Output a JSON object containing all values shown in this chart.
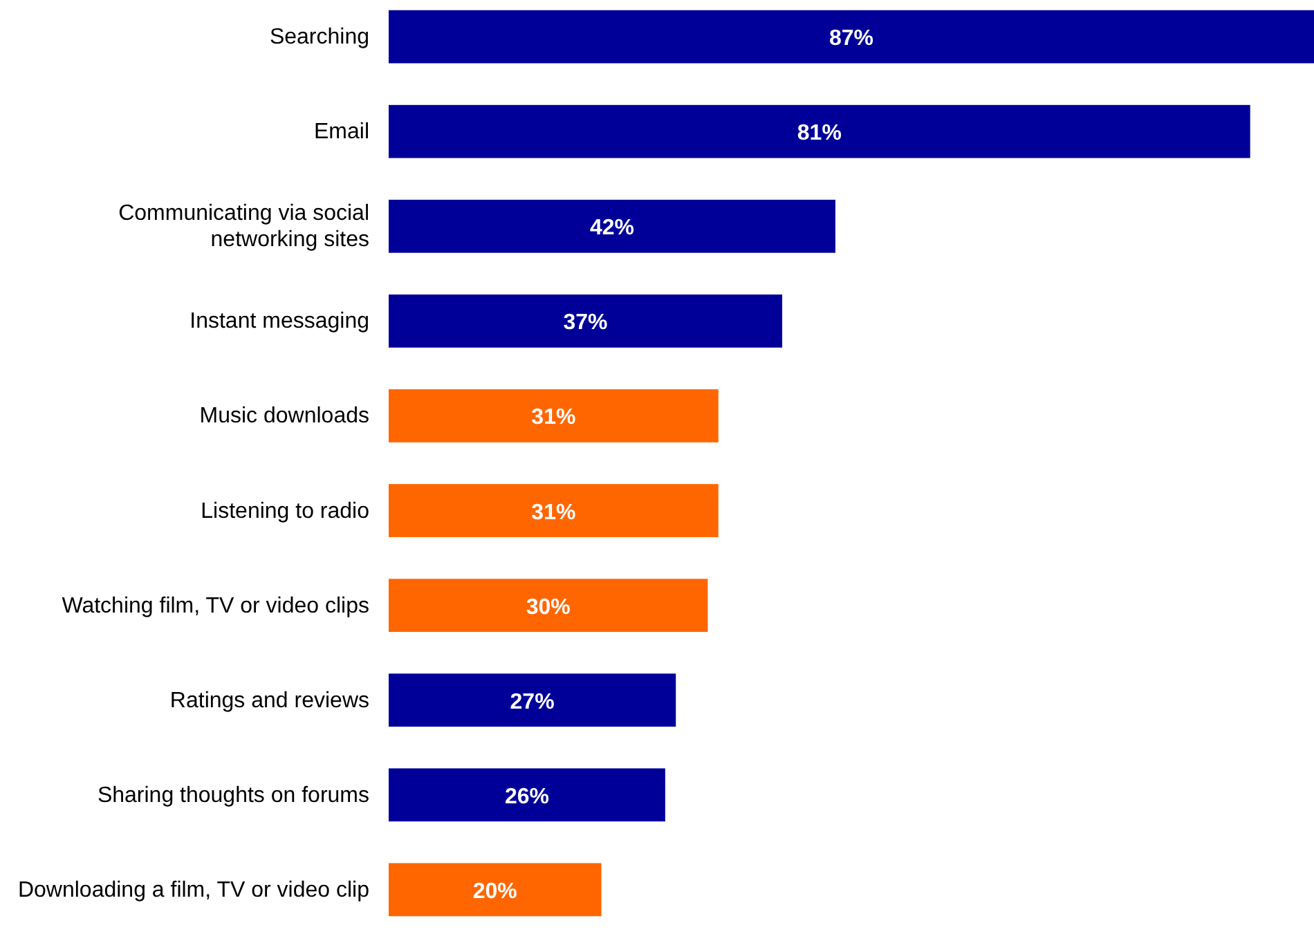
{
  "chart_data": {
    "type": "bar",
    "orientation": "horizontal",
    "categories": [
      "Searching",
      "Email",
      "Communicating via social networking sites",
      "Instant messaging",
      "Music downloads",
      "Listening to radio",
      "Watching film, TV or video clips",
      "Ratings and reviews",
      "Sharing thoughts on forums",
      "Downloading a film, TV or video clip"
    ],
    "values": [
      87,
      81,
      42,
      37,
      31,
      31,
      30,
      27,
      26,
      20
    ],
    "colors": [
      "#000099",
      "#000099",
      "#000099",
      "#000099",
      "#ff6600",
      "#ff6600",
      "#ff6600",
      "#000099",
      "#000099",
      "#ff6600"
    ],
    "value_labels": [
      "87%",
      "81%",
      "42%",
      "37%",
      "31%",
      "31%",
      "30%",
      "27%",
      "26%",
      "20%"
    ]
  }
}
